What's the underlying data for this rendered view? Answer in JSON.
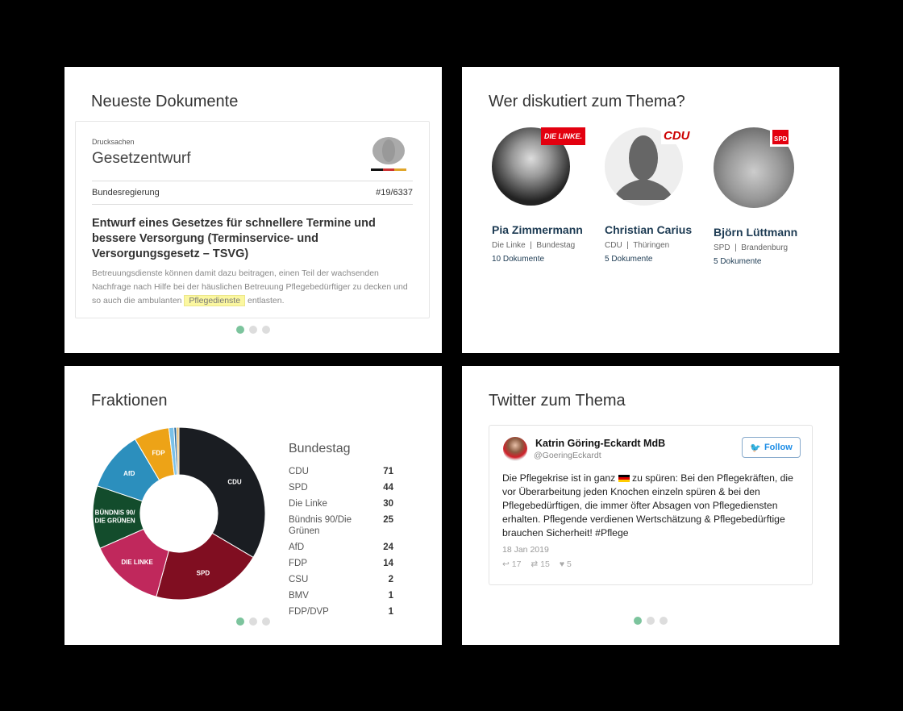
{
  "documents": {
    "title": "Neueste Dokumente",
    "kind": "Drucksachen",
    "type": "Gesetzentwurf",
    "source": "Bundesregierung",
    "number": "#19/6337",
    "headline": "Entwurf eines Gesetzes für schnellere Termine und bessere Versorgung (Terminservice- und Versorgungsgesetz – TSVG)",
    "abstract_before": "Betreuungsdienste können damit dazu beitragen, einen Teil der wachsenden Nachfrage nach Hilfe bei der häuslichen Betreuung Pflegebedürftiger zu decken und so auch die ambulanten",
    "highlight": "Pflegedienste",
    "abstract_after": "entlasten."
  },
  "people": {
    "title": "Wer diskutiert zum Thema?",
    "items": [
      {
        "name": "Pia Zimmermann",
        "meta": "Die Linke  |  Bundestag",
        "docs": "10 Dokumente",
        "party_badge": "DIE LINKE."
      },
      {
        "name": "Christian Carius",
        "meta": "CDU  |  Thüringen",
        "docs": "5 Dokumente",
        "party_badge": "CDU"
      },
      {
        "name": "Björn Lüttmann",
        "meta": "SPD  |  Brandenburg",
        "docs": "5 Dokumente",
        "party_badge": "SPD"
      }
    ]
  },
  "factions": {
    "title": "Fraktionen"
  },
  "chart_data": {
    "type": "pie",
    "subtype": "donut",
    "title": "Bundestag",
    "categories": [
      "CDU",
      "SPD",
      "Die Linke",
      "Bündnis 90/Die Grünen",
      "AfD",
      "FDP",
      "CSU",
      "BMV",
      "FDP/DVP"
    ],
    "slice_labels": [
      "CDU",
      "SPD",
      "DIE LINKE",
      "BÜNDNIS 90/\nDIE GRÜNEN",
      "AfD",
      "FDP",
      "",
      "",
      ""
    ],
    "values": [
      71,
      44,
      30,
      25,
      24,
      14,
      2,
      1,
      1
    ],
    "colors": [
      "#1a1d22",
      "#800e21",
      "#c0285c",
      "#134c2c",
      "#2c8fbd",
      "#eda317",
      "#7bc1e8",
      "#2b6c9e",
      "#e7b96a"
    ]
  },
  "twitter": {
    "title": "Twitter zum Thema",
    "author": "Katrin Göring-Eckardt MdB",
    "handle": "@GoeringEckardt",
    "follow": "Follow",
    "text_before": "Die Pflegekrise ist in ganz",
    "text_after": "zu spüren: Bei den Pflegekräften, die vor Überarbeitung jeden Knochen einzeln spüren & bei den Pflegebedürftigen, die immer öfter Absagen von Pflegediensten erhalten. Pflegende verdienen Wertschätzung & Pflegebedürftige brauchen Sicherheit! #Pflege",
    "date": "18 Jan 2019",
    "replies": "17",
    "retweets": "15",
    "likes": "5"
  }
}
